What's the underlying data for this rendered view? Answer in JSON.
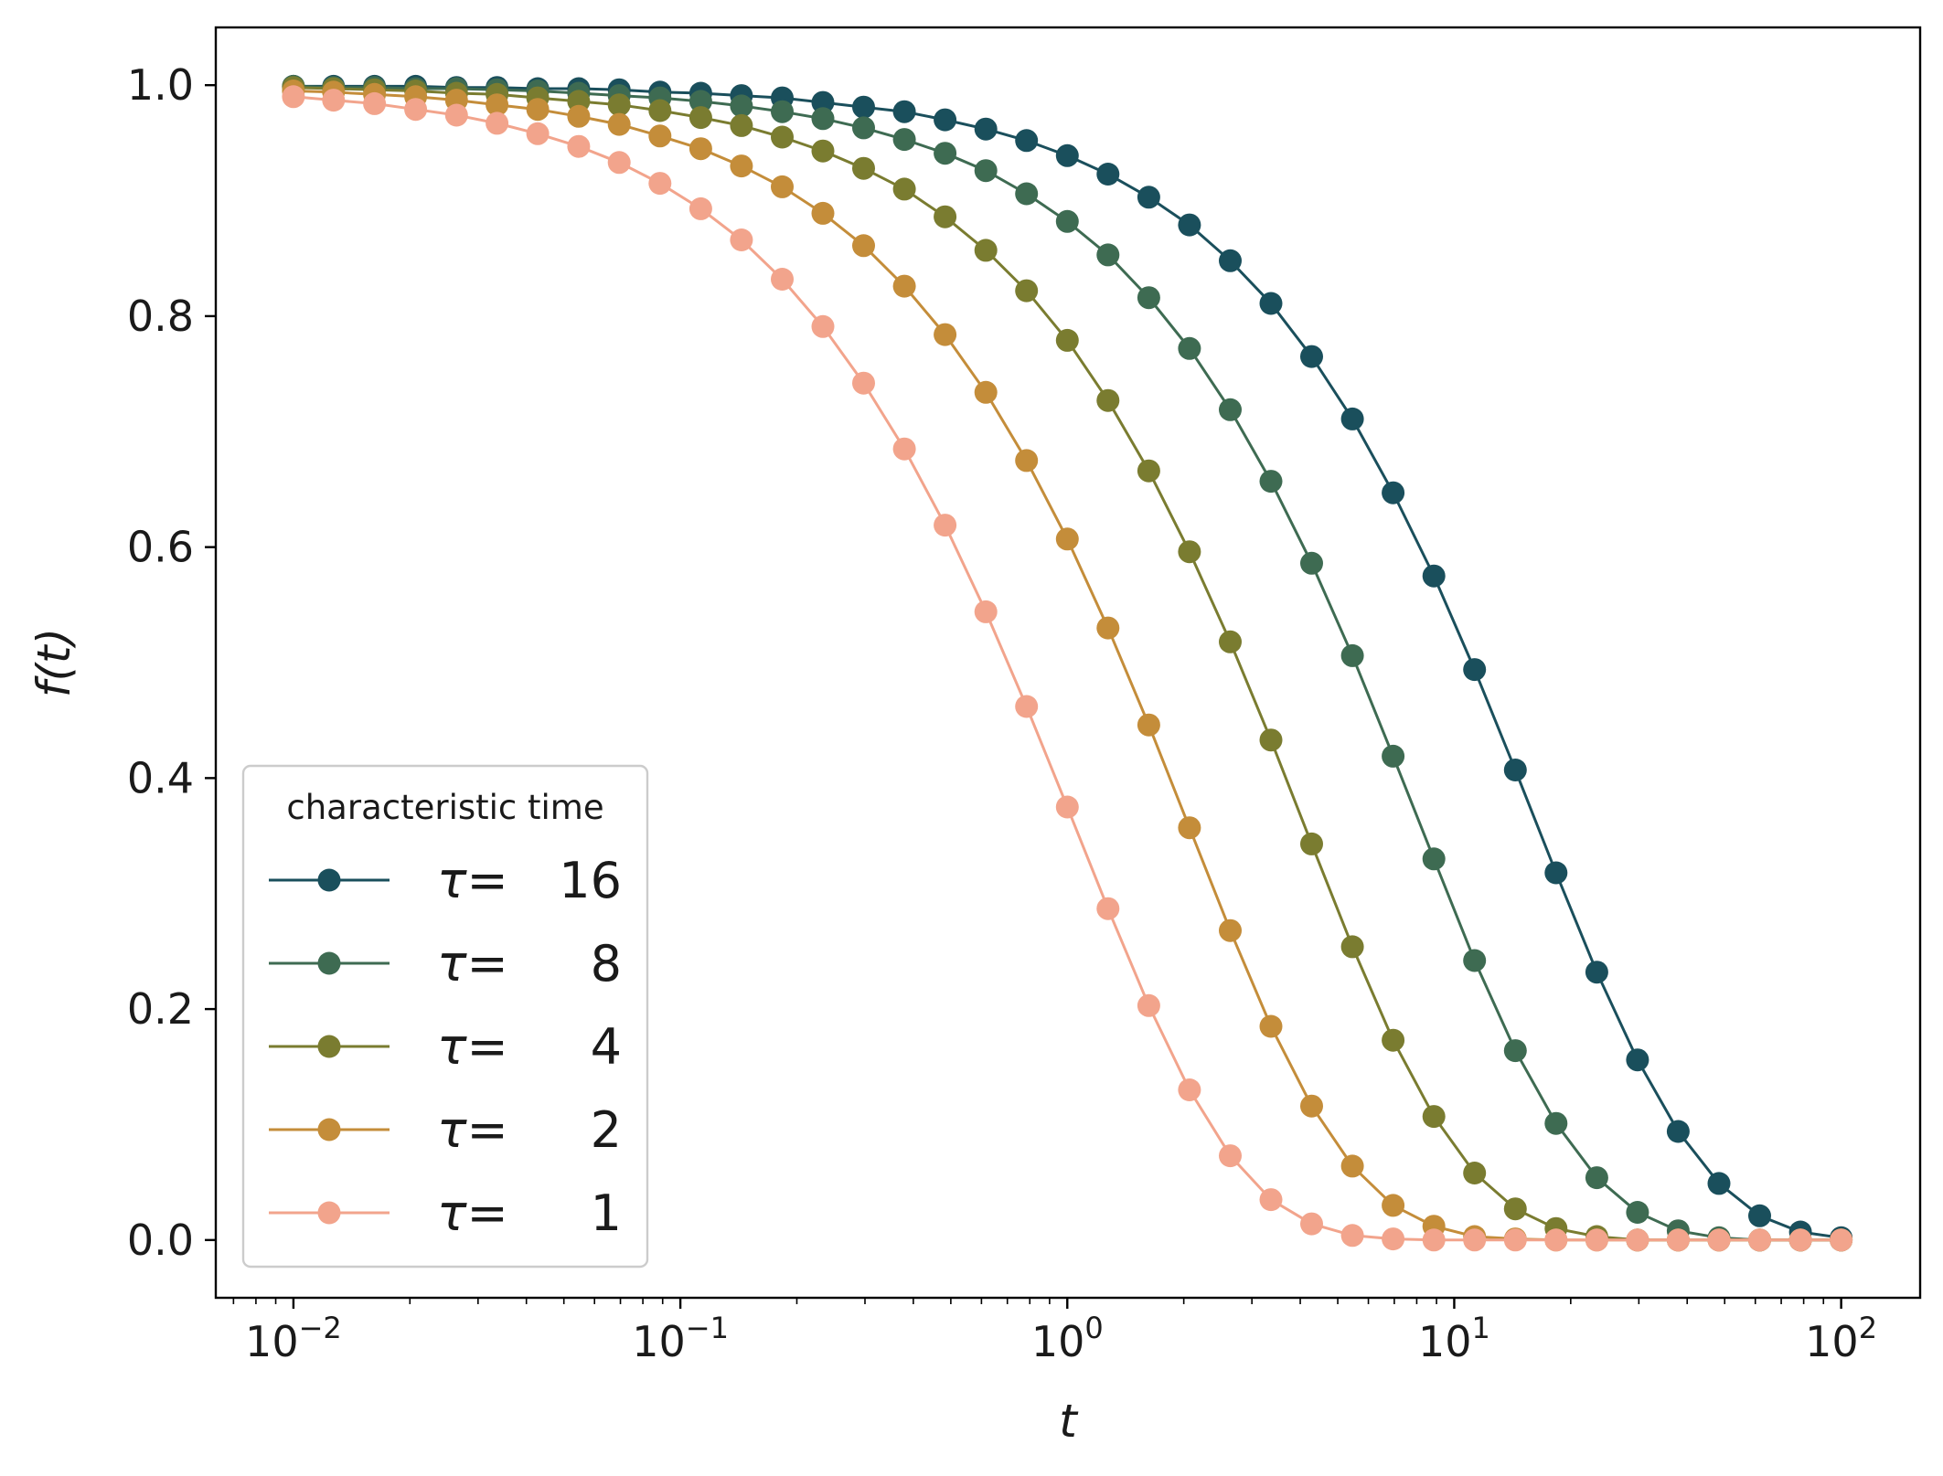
{
  "chart_data": {
    "type": "line",
    "xlabel": "t",
    "ylabel": "f(t)",
    "xscale": "log",
    "xlim": [
      0.0063,
      160
    ],
    "ylim": [
      -0.05,
      1.05
    ],
    "x_ticks": [
      {
        "value": 0.01,
        "base": "10",
        "exp": "−2"
      },
      {
        "value": 0.1,
        "base": "10",
        "exp": "−1"
      },
      {
        "value": 1,
        "base": "10",
        "exp": "0"
      },
      {
        "value": 10,
        "base": "10",
        "exp": "1"
      },
      {
        "value": 100,
        "base": "10",
        "exp": "2"
      }
    ],
    "y_ticks": [
      "0.0",
      "0.2",
      "0.4",
      "0.6",
      "0.8",
      "1.0"
    ],
    "grid": false,
    "legend": {
      "title": "characteristic time",
      "placement": "lower-left",
      "symbol": "τ="
    },
    "x": [
      0.01,
      0.0127,
      0.0162,
      0.0207,
      0.0264,
      0.0336,
      0.0428,
      0.0546,
      0.0695,
      0.0886,
      0.1129,
      0.1438,
      0.1833,
      0.2336,
      0.2976,
      0.3793,
      0.4833,
      0.6158,
      0.7848,
      1.0,
      1.2743,
      1.6238,
      2.0691,
      2.6367,
      3.3598,
      4.2813,
      5.4556,
      6.9519,
      8.8587,
      11.2884,
      14.3845,
      18.3298,
      23.3572,
      29.7635,
      37.9269,
      48.3293,
      61.5848,
      78.476,
      100.0
    ],
    "series": [
      {
        "name": "16",
        "tau": 16,
        "color": "#1a4f5c",
        "values": [
          0.999,
          0.999,
          0.999,
          0.999,
          0.998,
          0.998,
          0.997,
          0.997,
          0.996,
          0.994,
          0.993,
          0.991,
          0.989,
          0.985,
          0.981,
          0.977,
          0.97,
          0.962,
          0.952,
          0.939,
          0.923,
          0.903,
          0.879,
          0.848,
          0.811,
          0.765,
          0.711,
          0.647,
          0.575,
          0.494,
          0.407,
          0.318,
          0.232,
          0.156,
          0.094,
          0.049,
          0.021,
          0.007,
          0.002
        ]
      },
      {
        "name": "8",
        "tau": 8,
        "color": "#3e6b52",
        "values": [
          0.999,
          0.998,
          0.998,
          0.997,
          0.997,
          0.996,
          0.995,
          0.993,
          0.991,
          0.989,
          0.986,
          0.982,
          0.977,
          0.971,
          0.963,
          0.953,
          0.941,
          0.926,
          0.906,
          0.882,
          0.853,
          0.816,
          0.772,
          0.719,
          0.657,
          0.586,
          0.506,
          0.419,
          0.33,
          0.242,
          0.164,
          0.101,
          0.054,
          0.024,
          0.008,
          0.002,
          0.0,
          0.0,
          0.0
        ]
      },
      {
        "name": "4",
        "tau": 4,
        "color": "#7a7c30",
        "values": [
          0.998,
          0.997,
          0.996,
          0.995,
          0.993,
          0.992,
          0.989,
          0.986,
          0.983,
          0.978,
          0.972,
          0.965,
          0.955,
          0.943,
          0.928,
          0.91,
          0.886,
          0.857,
          0.822,
          0.779,
          0.727,
          0.666,
          0.596,
          0.518,
          0.433,
          0.343,
          0.254,
          0.173,
          0.107,
          0.058,
          0.027,
          0.01,
          0.003,
          0.0,
          0.0,
          0.0,
          0.0,
          0.0,
          0.0
        ]
      },
      {
        "name": "2",
        "tau": 2,
        "color": "#c48d3a",
        "values": [
          0.995,
          0.994,
          0.992,
          0.99,
          0.987,
          0.983,
          0.979,
          0.973,
          0.966,
          0.956,
          0.945,
          0.93,
          0.912,
          0.889,
          0.861,
          0.826,
          0.784,
          0.734,
          0.675,
          0.607,
          0.53,
          0.446,
          0.357,
          0.268,
          0.185,
          0.116,
          0.064,
          0.03,
          0.012,
          0.003,
          0.001,
          0.0,
          0.0,
          0.0,
          0.0,
          0.0,
          0.0,
          0.0,
          0.0
        ]
      },
      {
        "name": "1",
        "tau": 1,
        "color": "#f2a48c",
        "values": [
          0.99,
          0.987,
          0.984,
          0.979,
          0.974,
          0.967,
          0.958,
          0.947,
          0.933,
          0.915,
          0.893,
          0.866,
          0.832,
          0.791,
          0.742,
          0.685,
          0.619,
          0.544,
          0.462,
          0.375,
          0.287,
          0.203,
          0.13,
          0.073,
          0.035,
          0.014,
          0.004,
          0.001,
          0.0,
          0.0,
          0.0,
          0.0,
          0.0,
          0.0,
          0.0,
          0.0,
          0.0,
          0.0,
          0.0
        ]
      }
    ]
  }
}
